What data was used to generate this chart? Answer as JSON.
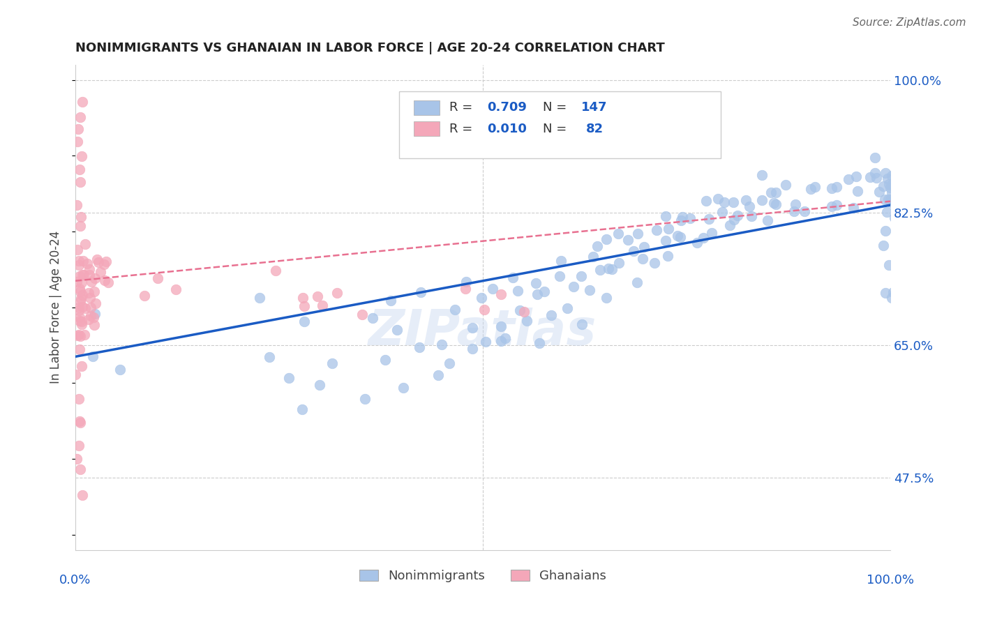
{
  "title": "NONIMMIGRANTS VS GHANAIAN IN LABOR FORCE | AGE 20-24 CORRELATION CHART",
  "source_text": "Source: ZipAtlas.com",
  "ylabel": "In Labor Force | Age 20-24",
  "y_tick_labels": [
    "47.5%",
    "65.0%",
    "82.5%",
    "100.0%"
  ],
  "y_tick_values": [
    0.475,
    0.65,
    0.825,
    1.0
  ],
  "x_min": 0.0,
  "x_max": 1.0,
  "y_min": 0.38,
  "y_max": 1.02,
  "nonimmigrant_color": "#a8c4e8",
  "ghanaian_color": "#f4a7b9",
  "trendline_blue_color": "#1a5bc4",
  "trendline_pink_color": "#e87090",
  "watermark": "ZIPatlas",
  "nonimmigrant_x": [
    0.02,
    0.03,
    0.05,
    0.22,
    0.25,
    0.27,
    0.28,
    0.28,
    0.3,
    0.32,
    0.35,
    0.36,
    0.38,
    0.38,
    0.4,
    0.4,
    0.42,
    0.43,
    0.44,
    0.45,
    0.46,
    0.47,
    0.48,
    0.48,
    0.49,
    0.5,
    0.5,
    0.51,
    0.52,
    0.52,
    0.53,
    0.53,
    0.54,
    0.55,
    0.55,
    0.56,
    0.57,
    0.57,
    0.58,
    0.58,
    0.59,
    0.6,
    0.6,
    0.61,
    0.62,
    0.62,
    0.63,
    0.63,
    0.64,
    0.64,
    0.65,
    0.65,
    0.66,
    0.66,
    0.67,
    0.67,
    0.68,
    0.68,
    0.69,
    0.69,
    0.7,
    0.7,
    0.71,
    0.71,
    0.72,
    0.72,
    0.73,
    0.73,
    0.74,
    0.74,
    0.75,
    0.75,
    0.76,
    0.76,
    0.77,
    0.77,
    0.78,
    0.78,
    0.79,
    0.79,
    0.8,
    0.8,
    0.81,
    0.81,
    0.82,
    0.82,
    0.83,
    0.83,
    0.84,
    0.84,
    0.85,
    0.85,
    0.86,
    0.86,
    0.87,
    0.88,
    0.89,
    0.89,
    0.9,
    0.9,
    0.91,
    0.92,
    0.93,
    0.93,
    0.94,
    0.95,
    0.96,
    0.96,
    0.97,
    0.97,
    0.98,
    0.98,
    0.99,
    0.99,
    1.0,
    1.0,
    1.0,
    1.0,
    1.0,
    1.0,
    1.0,
    1.0,
    1.0,
    1.0,
    1.0,
    1.0,
    1.0,
    1.0,
    1.0,
    1.0,
    1.0,
    1.0,
    1.0,
    1.0,
    1.0,
    1.0,
    1.0
  ],
  "nonimmigrant_y": [
    0.63,
    0.68,
    0.6,
    0.71,
    0.64,
    0.62,
    0.68,
    0.57,
    0.6,
    0.63,
    0.58,
    0.68,
    0.63,
    0.71,
    0.6,
    0.68,
    0.65,
    0.72,
    0.6,
    0.65,
    0.62,
    0.7,
    0.68,
    0.74,
    0.65,
    0.7,
    0.66,
    0.72,
    0.68,
    0.65,
    0.72,
    0.66,
    0.74,
    0.7,
    0.68,
    0.72,
    0.66,
    0.74,
    0.72,
    0.68,
    0.74,
    0.7,
    0.76,
    0.72,
    0.74,
    0.68,
    0.76,
    0.72,
    0.74,
    0.78,
    0.72,
    0.76,
    0.78,
    0.74,
    0.76,
    0.8,
    0.78,
    0.74,
    0.78,
    0.76,
    0.8,
    0.78,
    0.76,
    0.8,
    0.78,
    0.82,
    0.8,
    0.78,
    0.82,
    0.8,
    0.8,
    0.82,
    0.82,
    0.78,
    0.8,
    0.84,
    0.82,
    0.8,
    0.82,
    0.84,
    0.8,
    0.84,
    0.82,
    0.84,
    0.82,
    0.84,
    0.84,
    0.82,
    0.84,
    0.86,
    0.84,
    0.82,
    0.84,
    0.86,
    0.84,
    0.86,
    0.82,
    0.84,
    0.86,
    0.84,
    0.86,
    0.84,
    0.86,
    0.84,
    0.86,
    0.88,
    0.84,
    0.86,
    0.88,
    0.86,
    0.86,
    0.88,
    0.86,
    0.88,
    0.84,
    0.86,
    0.88,
    0.86,
    0.88,
    0.86,
    0.88,
    0.84,
    0.86,
    0.84,
    0.82,
    0.86,
    0.88,
    0.84,
    0.82,
    0.8,
    0.84,
    0.86,
    0.72,
    0.76,
    0.78,
    0.72,
    0.7
  ],
  "ghanaian_x": [
    0.005,
    0.005,
    0.005,
    0.005,
    0.005,
    0.005,
    0.005,
    0.005,
    0.005,
    0.005,
    0.005,
    0.005,
    0.005,
    0.005,
    0.005,
    0.005,
    0.005,
    0.005,
    0.005,
    0.005,
    0.005,
    0.005,
    0.005,
    0.005,
    0.005,
    0.005,
    0.005,
    0.005,
    0.005,
    0.005,
    0.005,
    0.005,
    0.005,
    0.005,
    0.005,
    0.005,
    0.005,
    0.005,
    0.005,
    0.005,
    0.01,
    0.01,
    0.01,
    0.01,
    0.01,
    0.01,
    0.01,
    0.015,
    0.015,
    0.015,
    0.015,
    0.015,
    0.02,
    0.02,
    0.02,
    0.02,
    0.02,
    0.025,
    0.025,
    0.025,
    0.025,
    0.025,
    0.03,
    0.03,
    0.035,
    0.035,
    0.04,
    0.04,
    0.085,
    0.1,
    0.12,
    0.25,
    0.28,
    0.28,
    0.3,
    0.3,
    0.32,
    0.35,
    0.48,
    0.5,
    0.52,
    0.55
  ],
  "ghanaian_y": [
    0.97,
    0.95,
    0.94,
    0.92,
    0.9,
    0.88,
    0.86,
    0.84,
    0.82,
    0.8,
    0.78,
    0.76,
    0.74,
    0.72,
    0.7,
    0.68,
    0.66,
    0.64,
    0.62,
    0.6,
    0.58,
    0.56,
    0.54,
    0.52,
    0.5,
    0.48,
    0.46,
    0.74,
    0.72,
    0.7,
    0.68,
    0.66,
    0.76,
    0.74,
    0.72,
    0.7,
    0.68,
    0.66,
    0.74,
    0.72,
    0.78,
    0.76,
    0.74,
    0.72,
    0.7,
    0.68,
    0.66,
    0.76,
    0.74,
    0.72,
    0.7,
    0.68,
    0.76,
    0.74,
    0.72,
    0.7,
    0.68,
    0.76,
    0.74,
    0.72,
    0.7,
    0.68,
    0.76,
    0.74,
    0.76,
    0.74,
    0.76,
    0.74,
    0.72,
    0.74,
    0.72,
    0.74,
    0.72,
    0.7,
    0.72,
    0.7,
    0.72,
    0.7,
    0.72,
    0.7,
    0.72,
    0.7
  ],
  "blue_trend_x0": 0.0,
  "blue_trend_y0": 0.635,
  "blue_trend_x1": 1.0,
  "blue_trend_y1": 0.835,
  "pink_trend_x0": 0.0,
  "pink_trend_y0": 0.735,
  "pink_trend_x1": 1.0,
  "pink_trend_y1": 0.84
}
